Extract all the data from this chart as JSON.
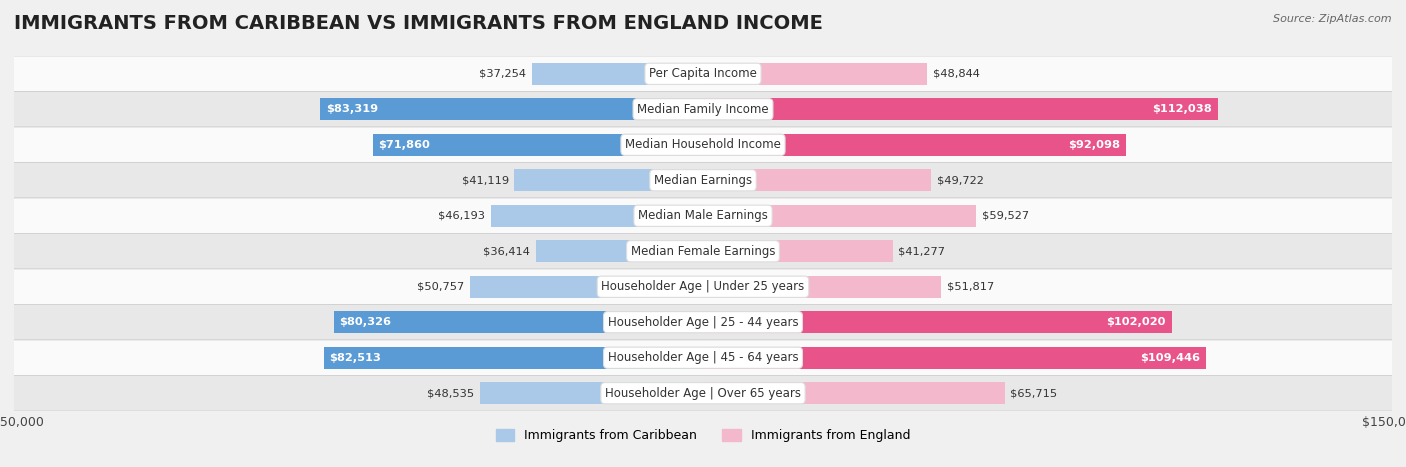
{
  "title": "IMMIGRANTS FROM CARIBBEAN VS IMMIGRANTS FROM ENGLAND INCOME",
  "source": "Source: ZipAtlas.com",
  "categories": [
    "Per Capita Income",
    "Median Family Income",
    "Median Household Income",
    "Median Earnings",
    "Median Male Earnings",
    "Median Female Earnings",
    "Householder Age | Under 25 years",
    "Householder Age | 25 - 44 years",
    "Householder Age | 45 - 64 years",
    "Householder Age | Over 65 years"
  ],
  "caribbean_values": [
    37254,
    83319,
    71860,
    41119,
    46193,
    36414,
    50757,
    80326,
    82513,
    48535
  ],
  "england_values": [
    48844,
    112038,
    92098,
    49722,
    59527,
    41277,
    51817,
    102020,
    109446,
    65715
  ],
  "caribbean_color_light": "#aac9e8",
  "caribbean_color_dark": "#5b9bd5",
  "england_color_light": "#f4b8cc",
  "england_color_dark": "#e8538a",
  "caribbean_threshold": 60000,
  "england_threshold": 75000,
  "bar_height": 0.62,
  "max_value": 150000,
  "background_color": "#f0f0f0",
  "row_bg_light": "#fafafa",
  "row_bg_dark": "#e8e8e8",
  "legend_caribbean": "Immigrants from Caribbean",
  "legend_england": "Immigrants from England",
  "title_fontsize": 14,
  "label_fontsize": 8.5,
  "value_fontsize": 8.2
}
